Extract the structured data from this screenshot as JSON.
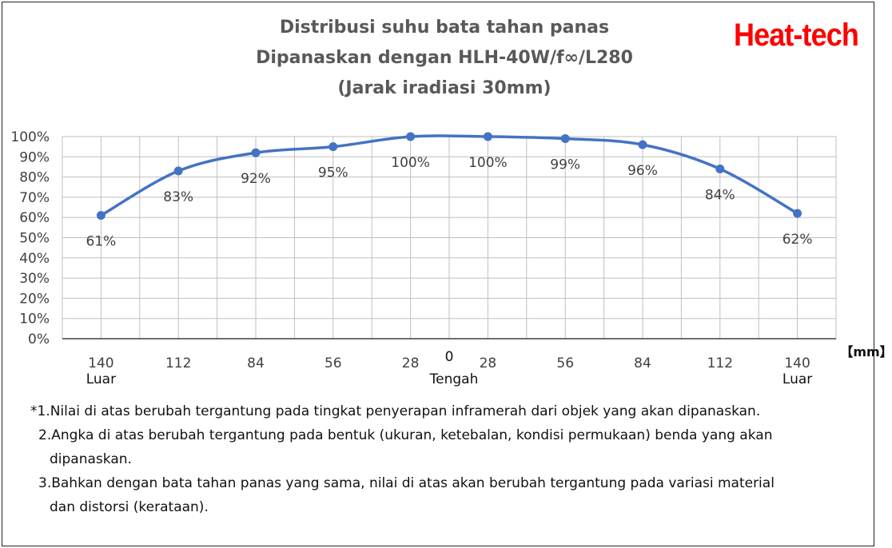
{
  "chart_data": {
    "type": "line",
    "title_lines": [
      "Distribusi suhu bata tahan panas",
      "Dipanaskan dengan HLH-40W/f∞/L280",
      "(Jarak iradiasi 30mm)"
    ],
    "categories": [
      "140",
      "112",
      "84",
      "56",
      "28",
      "28",
      "56",
      "84",
      "112",
      "140"
    ],
    "category_sublabels": [
      "Luar",
      "",
      "",
      "",
      "",
      "",
      "",
      "",
      "",
      "Luar"
    ],
    "center_tick": "0",
    "center_label": "Tengah",
    "unit_label": "【mm】",
    "values": [
      61,
      83,
      92,
      95,
      100,
      100,
      99,
      96,
      84,
      62
    ],
    "data_labels": [
      "61%",
      "83%",
      "92%",
      "95%",
      "100%",
      "100%",
      "99%",
      "96%",
      "84%",
      "62%"
    ],
    "y_ticks": [
      "0%",
      "10%",
      "20%",
      "30%",
      "40%",
      "50%",
      "60%",
      "70%",
      "80%",
      "90%",
      "100%"
    ],
    "ylim": [
      0,
      100
    ],
    "grid": true,
    "line_color": "#4472c4"
  },
  "brand": "Heat-tech",
  "brand_color": "#ff0000",
  "notes": [
    "*1.Nilai di atas berubah tergantung pada tingkat penyerapan inframerah dari objek yang akan dipanaskan.",
    "2.Angka di atas berubah tergantung pada bentuk (ukuran, ketebalan, kondisi permukaan) benda yang akan",
    "dipanaskan.",
    "3.Bahkan dengan bata tahan panas yang sama, nilai di atas akan berubah tergantung pada variasi material",
    "dan distorsi (kerataan)."
  ]
}
